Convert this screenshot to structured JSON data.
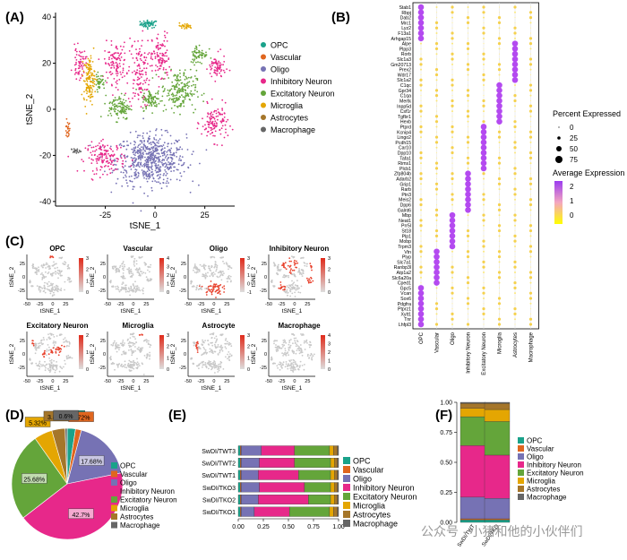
{
  "panel_letters": {
    "A": "(A)",
    "B": "(B)",
    "C": "(C)",
    "D": "(D)",
    "E": "(E)",
    "F": "(F)"
  },
  "cell_types": [
    "OPC",
    "Vascular",
    "Oligo",
    "Inhibitory Neuron",
    "Excitatory Neuron",
    "Microglia",
    "Astrocytes",
    "Macrophage"
  ],
  "colors": [
    "#1aa28a",
    "#e0661f",
    "#7672b4",
    "#e7288a",
    "#64a53a",
    "#e4a602",
    "#a5762a",
    "#666666"
  ],
  "watermark": "公众号 · 小猪和他的小伙伴们",
  "chart_data": [
    {
      "panel": "A",
      "type": "scatter",
      "xlabel": "tSNE_1",
      "ylabel": "tSNE_2",
      "xticks": [
        "-25",
        "0",
        "25"
      ],
      "yticks": [
        "40",
        "20",
        "0",
        "-20",
        "-40"
      ],
      "xlim": [
        -50,
        40
      ],
      "ylim": [
        -42,
        42
      ],
      "legend": [
        "OPC",
        "Vascular",
        "Oligo",
        "Inhibitory Neuron",
        "Excitatory Neuron",
        "Microglia",
        "Astrocytes",
        "Macrophage"
      ],
      "legend_position": "right",
      "clusters": [
        {
          "label": "OPC",
          "cx": -3,
          "cy": 37,
          "rx": 4,
          "ry": 1.5,
          "n": 55,
          "color": "#1aa28a"
        },
        {
          "label": "Vascular",
          "cx": -44,
          "cy": -9,
          "rx": 1.2,
          "ry": 3.5,
          "n": 22,
          "color": "#e0661f"
        },
        {
          "label": "Oligo",
          "cx": -2,
          "cy": -22,
          "rx": 16,
          "ry": 10,
          "n": 600,
          "color": "#7672b4"
        },
        {
          "label": "Inhibitory Neuron",
          "cx": -8,
          "cy": 16,
          "rx": 5,
          "ry": 14,
          "n": 130,
          "color": "#e7288a"
        },
        {
          "label": "Inhibitory Neuron",
          "cx": 3,
          "cy": 22,
          "rx": 4,
          "ry": 10,
          "n": 100,
          "color": "#e7288a"
        },
        {
          "label": "Inhibitory Neuron",
          "cx": -20,
          "cy": 20,
          "rx": 5,
          "ry": 8,
          "n": 110,
          "color": "#e7288a"
        },
        {
          "label": "Inhibitory Neuron",
          "cx": -25,
          "cy": -21,
          "rx": 9,
          "ry": 6,
          "n": 150,
          "color": "#e7288a"
        },
        {
          "label": "Inhibitory Neuron",
          "cx": 30,
          "cy": -6,
          "rx": 6,
          "ry": 7,
          "n": 120,
          "color": "#e7288a"
        },
        {
          "label": "Inhibitory Neuron",
          "cx": 31,
          "cy": 18,
          "rx": 4,
          "ry": 5,
          "n": 70,
          "color": "#e7288a"
        },
        {
          "label": "Inhibitory Neuron",
          "cx": -38,
          "cy": 20,
          "rx": 3,
          "ry": 6,
          "n": 60,
          "color": "#e7288a"
        },
        {
          "label": "Excitatory Neuron",
          "cx": 12,
          "cy": 8,
          "rx": 8,
          "ry": 8,
          "n": 200,
          "color": "#64a53a"
        },
        {
          "label": "Excitatory Neuron",
          "cx": -18,
          "cy": 1,
          "rx": 5,
          "ry": 5,
          "n": 110,
          "color": "#64a53a"
        },
        {
          "label": "Excitatory Neuron",
          "cx": -2,
          "cy": 4,
          "rx": 4,
          "ry": 4,
          "n": 80,
          "color": "#64a53a"
        },
        {
          "label": "Excitatory Neuron",
          "cx": 22,
          "cy": 24,
          "rx": 4,
          "ry": 4,
          "n": 60,
          "color": "#64a53a"
        },
        {
          "label": "Excitatory Neuron",
          "cx": -28,
          "cy": 12,
          "rx": 2.5,
          "ry": 3,
          "n": 40,
          "color": "#64a53a"
        },
        {
          "label": "Microglia",
          "cx": 15,
          "cy": 36,
          "rx": 3.5,
          "ry": 1.2,
          "n": 30,
          "color": "#e4a602"
        },
        {
          "label": "Astrocytes",
          "cx": -33,
          "cy": 13,
          "rx": 2.5,
          "ry": 9,
          "n": 130,
          "color": "#e4a602"
        },
        {
          "label": "Macrophage",
          "cx": -40,
          "cy": -18,
          "rx": 2,
          "ry": 1,
          "n": 18,
          "color": "#666666"
        }
      ]
    },
    {
      "panel": "B",
      "type": "dot",
      "genes": [
        "Stab1",
        "Rbpj",
        "Dab2",
        "Mrc1",
        "Lyz2",
        "F13a1",
        "Arhgap15",
        "Alpe",
        "Plpp3",
        "Rorb",
        "Slc1a3",
        "Gm20713",
        "Prex2",
        "Wdr17",
        "Slc1a2",
        "C1qc",
        "Gpr34",
        "C1qa",
        "Mertk",
        "Inpp5d",
        "Csf1r",
        "Tgfbr1",
        "Hexb",
        "Ptprd",
        "Kcnip4",
        "Lingo2",
        "Pcdh15",
        "Car10",
        "Dpp10",
        "Tafa1",
        "Rims1",
        "Plcb1",
        "Zfp804b",
        "Adarb2",
        "Grip1",
        "Rarb",
        "Ptn3",
        "Meis2",
        "Dpp6",
        "Galnt6",
        "Mbp",
        "Neat1",
        "Prr5l",
        "St18",
        "Plp1",
        "Mobp",
        "Trpm3",
        "Vtn",
        "Plyp",
        "Slc7a1",
        "Ranbp3l",
        "Atp1a2",
        "Slc6a20a",
        "Cped1",
        "Gpc5",
        "Vcan",
        "Sox6",
        "Pdgfra",
        "Ptprz1",
        "Xylt1",
        "Tnr",
        "Lhfpl3"
      ],
      "groups": [
        "OPC",
        "Vascular",
        "Oligo",
        "Inhibitory Neuron",
        "Excitatory Neuron",
        "Microglia",
        "Astrocytes",
        "Macrophage"
      ],
      "marker_columns": [
        0,
        0,
        0,
        0,
        0,
        0,
        0,
        6,
        6,
        6,
        6,
        6,
        6,
        6,
        6,
        5,
        5,
        5,
        5,
        5,
        5,
        5,
        5,
        4,
        4,
        4,
        4,
        4,
        4,
        4,
        4,
        4,
        3,
        3,
        3,
        3,
        3,
        3,
        3,
        3,
        2,
        2,
        2,
        2,
        2,
        2,
        2,
        1,
        1,
        1,
        1,
        1,
        1,
        1,
        0,
        0,
        0,
        0,
        0,
        0,
        0,
        0
      ],
      "legend_percent_title": "Percent Expressed",
      "legend_percent": [
        "0",
        "25",
        "50",
        "75"
      ],
      "legend_avg_title": "Average Expression",
      "legend_avg_ticks": [
        "2",
        "1",
        "0"
      ]
    },
    {
      "panel": "C",
      "type": "scatter",
      "subplots": [
        {
          "title": "OPC",
          "cbar": [
            "3",
            "2",
            "1",
            "0"
          ],
          "highlight": [
            0
          ]
        },
        {
          "title": "Vascular",
          "cbar": [
            "4",
            "3",
            "2",
            "1",
            "0"
          ],
          "highlight": []
        },
        {
          "title": "Oligo",
          "cbar": [
            "3",
            "2",
            "1",
            "0",
            "-1"
          ],
          "highlight": [
            2
          ]
        },
        {
          "title": "Inhibitory Neuron",
          "cbar": [
            "3",
            "2",
            "1",
            "0"
          ],
          "highlight": [
            3,
            4,
            5,
            6,
            7,
            8
          ]
        },
        {
          "title": "Excitatory Neuron",
          "cbar": [
            "2",
            "1",
            "0"
          ],
          "highlight": [
            9,
            10,
            11,
            12
          ]
        },
        {
          "title": "Microglia",
          "cbar": [
            "3",
            "2",
            "1",
            "0"
          ],
          "highlight": [
            15
          ]
        },
        {
          "title": "Astrocyte",
          "cbar": [
            "3",
            "2",
            "1",
            "0"
          ],
          "highlight": [
            16
          ]
        },
        {
          "title": "Macrophage",
          "cbar": [
            "4",
            "3",
            "2",
            "1",
            "0"
          ],
          "highlight": []
        }
      ],
      "xlabel": "tSNE_1",
      "ylabel": "tSNE_2",
      "xticks": [
        "-50",
        "-25",
        "0",
        "25"
      ],
      "yticks": [
        "25",
        "0",
        "-25"
      ]
    },
    {
      "panel": "D",
      "type": "pie",
      "values": [
        2.42,
        1.72,
        17.68,
        42.7,
        25.68,
        5.32,
        3.87,
        0.6
      ],
      "slice_labels": [
        "2.42%",
        "1.72%",
        "17.68%",
        "42.7%",
        "25.68%",
        "5.32%",
        "3.87%",
        "0.6%"
      ],
      "legend": [
        "OPC",
        "Vascular",
        "Oligo",
        "Inhibitory Neuron",
        "Excitatory Neuron",
        "Microglia",
        "Astrocytes",
        "Macrophage"
      ]
    },
    {
      "panel": "E",
      "type": "bar",
      "orientation": "horizontal-stacked",
      "categories": [
        "SwDI/TWT3",
        "SwDI/TWT2",
        "SwDI/TWT1",
        "SwDI/TKO3",
        "SwDI/TKO2",
        "SwDI/TKO1"
      ],
      "xticks": [
        "0.00",
        "0.25",
        "0.50",
        "0.75",
        "1.00"
      ],
      "xlim": [
        0,
        1
      ],
      "series": [
        {
          "name": "OPC",
          "values": [
            0.02,
            0.02,
            0.02,
            0.02,
            0.02,
            0.02
          ]
        },
        {
          "name": "Vascular",
          "values": [
            0.01,
            0.01,
            0.01,
            0.01,
            0.01,
            0.01
          ]
        },
        {
          "name": "Oligo",
          "values": [
            0.2,
            0.18,
            0.17,
            0.18,
            0.17,
            0.13
          ]
        },
        {
          "name": "Inhibitory Neuron",
          "values": [
            0.33,
            0.35,
            0.4,
            0.45,
            0.5,
            0.35
          ]
        },
        {
          "name": "Excitatory Neuron",
          "values": [
            0.35,
            0.36,
            0.32,
            0.26,
            0.22,
            0.4
          ]
        },
        {
          "name": "Microglia",
          "values": [
            0.04,
            0.04,
            0.04,
            0.04,
            0.04,
            0.04
          ]
        },
        {
          "name": "Astrocytes",
          "values": [
            0.04,
            0.03,
            0.03,
            0.03,
            0.03,
            0.04
          ]
        },
        {
          "name": "Macrophage",
          "values": [
            0.01,
            0.01,
            0.01,
            0.01,
            0.01,
            0.01
          ]
        }
      ]
    },
    {
      "panel": "F",
      "type": "bar",
      "orientation": "vertical-stacked",
      "categories": [
        "SwDI/TWT",
        "SwDI/TKO"
      ],
      "yticks": [
        "1.00",
        "0.75",
        "0.50",
        "0.25",
        "0.00"
      ],
      "ylim": [
        0,
        1
      ],
      "series": [
        {
          "name": "OPC",
          "values": [
            0.02,
            0.02
          ]
        },
        {
          "name": "Vascular",
          "values": [
            0.01,
            0.01
          ]
        },
        {
          "name": "Oligo",
          "values": [
            0.18,
            0.17
          ]
        },
        {
          "name": "Inhibitory Neuron",
          "values": [
            0.43,
            0.36
          ]
        },
        {
          "name": "Excitatory Neuron",
          "values": [
            0.24,
            0.28
          ]
        },
        {
          "name": "Microglia",
          "values": [
            0.07,
            0.1
          ]
        },
        {
          "name": "Astrocytes",
          "values": [
            0.04,
            0.05
          ]
        },
        {
          "name": "Macrophage",
          "values": [
            0.01,
            0.01
          ]
        }
      ]
    }
  ]
}
